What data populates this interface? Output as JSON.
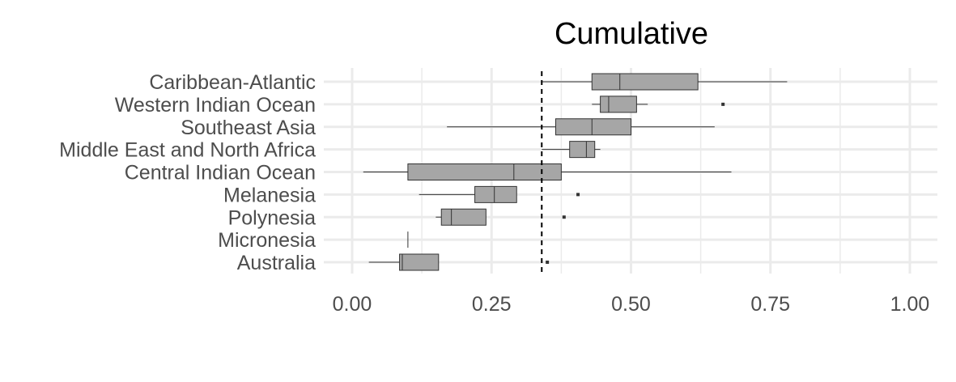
{
  "chart_data": {
    "type": "boxplot",
    "title": "Cumulative",
    "xlabel": "",
    "ylabel": "",
    "xlim": [
      -0.02,
      1.05
    ],
    "x_ticks": [
      0.0,
      0.25,
      0.5,
      0.75,
      1.0
    ],
    "x_tick_labels": [
      "0.00",
      "0.25",
      "0.50",
      "0.75",
      "1.00"
    ],
    "grid": true,
    "reference_line": {
      "x": 0.34,
      "style": "dashed",
      "color": "#000000"
    },
    "box_color": "#a6a6a6",
    "categories": [
      "Caribbean-Atlantic",
      "Western Indian Ocean",
      "Southeast Asia",
      "Middle East and North Africa",
      "Central Indian Ocean",
      "Melanesia",
      "Polynesia",
      "Micronesia",
      "Australia"
    ],
    "boxes": [
      {
        "category": "Caribbean-Atlantic",
        "whisker_low": 0.34,
        "q1": 0.43,
        "median": 0.48,
        "q3": 0.62,
        "whisker_high": 0.78,
        "outliers": []
      },
      {
        "category": "Western Indian Ocean",
        "whisker_low": 0.43,
        "q1": 0.445,
        "median": 0.46,
        "q3": 0.51,
        "whisker_high": 0.53,
        "outliers": [
          0.665
        ]
      },
      {
        "category": "Southeast Asia",
        "whisker_low": 0.17,
        "q1": 0.365,
        "median": 0.43,
        "q3": 0.5,
        "whisker_high": 0.65,
        "outliers": []
      },
      {
        "category": "Middle East and North Africa",
        "whisker_low": 0.34,
        "q1": 0.39,
        "median": 0.42,
        "q3": 0.435,
        "whisker_high": 0.445,
        "outliers": []
      },
      {
        "category": "Central Indian Ocean",
        "whisker_low": 0.02,
        "q1": 0.1,
        "median": 0.29,
        "q3": 0.375,
        "whisker_high": 0.68,
        "outliers": []
      },
      {
        "category": "Melanesia",
        "whisker_low": 0.12,
        "q1": 0.22,
        "median": 0.255,
        "q3": 0.295,
        "whisker_high": 0.295,
        "outliers": [
          0.405
        ]
      },
      {
        "category": "Polynesia",
        "whisker_low": 0.15,
        "q1": 0.16,
        "median": 0.178,
        "q3": 0.24,
        "whisker_high": 0.24,
        "outliers": [
          0.38
        ]
      },
      {
        "category": "Micronesia",
        "whisker_low": 0.1,
        "q1": 0.1,
        "median": 0.1,
        "q3": 0.1,
        "whisker_high": 0.1,
        "outliers": []
      },
      {
        "category": "Australia",
        "whisker_low": 0.03,
        "q1": 0.085,
        "median": 0.09,
        "q3": 0.155,
        "whisker_high": 0.155,
        "outliers": [
          0.35
        ]
      }
    ]
  }
}
